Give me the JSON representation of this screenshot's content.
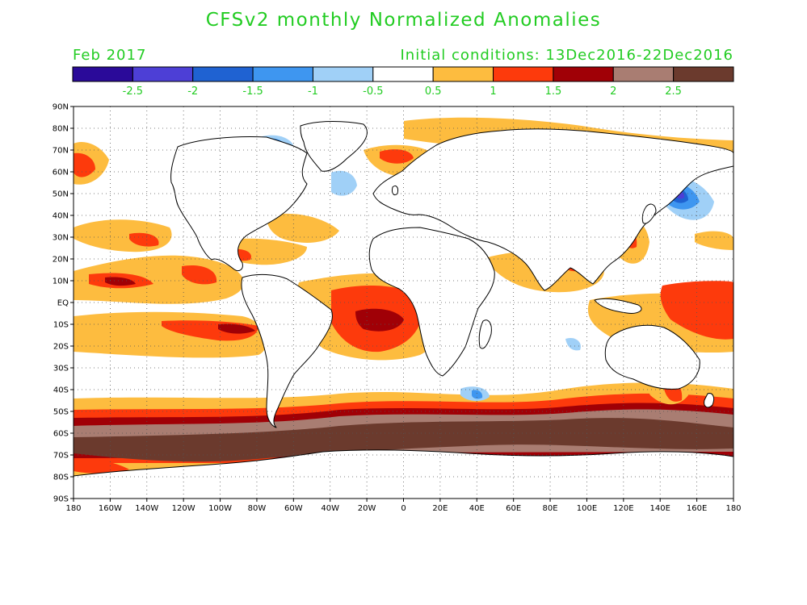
{
  "title": "CFSv2 monthly Normalized Anomalies",
  "month": "Feb 2017",
  "initial_conditions": "Initial conditions: 13Dec2016-22Dec2016",
  "colorbar": {
    "colors": [
      "#2a0a99",
      "#4d3fd6",
      "#1f62d2",
      "#3e96f0",
      "#a0d0f7",
      "#ffffff",
      "#fdbc3f",
      "#fd3a0c",
      "#a00006",
      "#a97d72",
      "#6b3a2d"
    ],
    "labels": [
      "-2.5",
      "-2",
      "-1.5",
      "-1",
      "-0.5",
      "0.5",
      "1",
      "1.5",
      "2",
      "2.5"
    ]
  },
  "map": {
    "lat_ticks": [
      "90N",
      "80N",
      "70N",
      "60N",
      "50N",
      "40N",
      "30N",
      "20N",
      "10N",
      "EQ",
      "10S",
      "20S",
      "30S",
      "40S",
      "50S",
      "60S",
      "70S",
      "80S",
      "90S"
    ],
    "lon_ticks": [
      "180",
      "160W",
      "140W",
      "120W",
      "100W",
      "80W",
      "60W",
      "40W",
      "20W",
      "0",
      "20E",
      "40E",
      "60E",
      "80E",
      "100E",
      "120E",
      "140E",
      "160E",
      "180"
    ],
    "lon_range": [
      -180,
      180
    ],
    "lat_range": [
      -90,
      90
    ],
    "grid": "dotted"
  }
}
